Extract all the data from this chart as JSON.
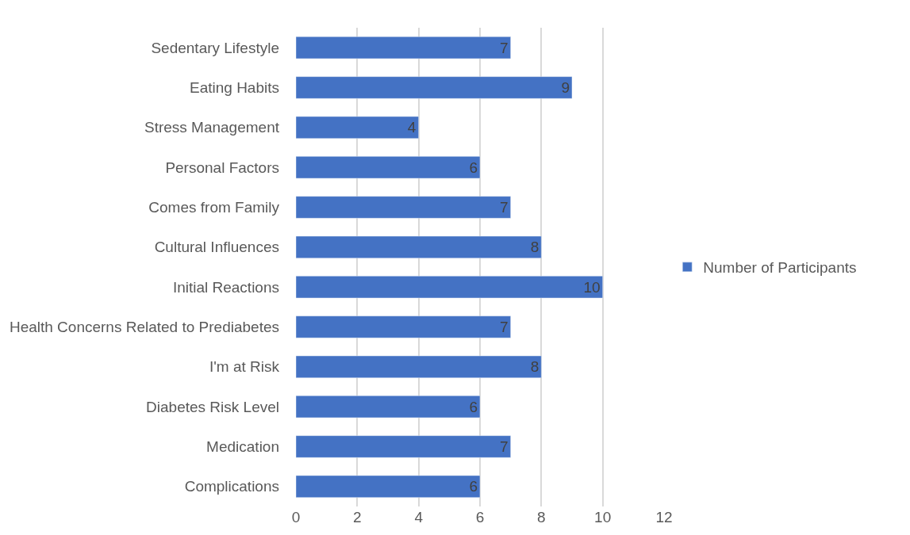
{
  "chart_data": {
    "type": "bar",
    "orientation": "horizontal",
    "categories": [
      "Sedentary Lifestyle",
      "Eating Habits",
      "Stress Management",
      "Personal Factors",
      "Comes from Family",
      "Cultural Influences",
      "Initial Reactions",
      "Health Concerns Related to Prediabetes",
      "I'm at Risk",
      "Diabetes Risk Level",
      "Medication",
      "Complications"
    ],
    "series": [
      {
        "name": "Number of Participants",
        "color": "#4472c4",
        "values": [
          7,
          9,
          4,
          6,
          7,
          8,
          10,
          7,
          8,
          6,
          7,
          6
        ]
      }
    ],
    "xlim": [
      0,
      12
    ],
    "xticks": [
      0,
      2,
      4,
      6,
      8,
      10,
      12
    ],
    "grid": "x",
    "legend": "right",
    "data_labels": true
  }
}
